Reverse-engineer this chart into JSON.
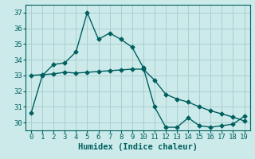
{
  "xlabel": "Humidex (Indice chaleur)",
  "line1_x": [
    0,
    1,
    2,
    3,
    4,
    5,
    6,
    7,
    8,
    9,
    10,
    11,
    12,
    13,
    14,
    15,
    16,
    17,
    18,
    19
  ],
  "line1_y": [
    30.6,
    33.0,
    33.7,
    33.8,
    34.5,
    37.0,
    35.3,
    35.7,
    35.3,
    34.8,
    33.5,
    31.0,
    29.7,
    29.7,
    30.3,
    29.8,
    29.7,
    29.8,
    29.9,
    30.4
  ],
  "line2_x": [
    0,
    1,
    2,
    3,
    4,
    5,
    6,
    7,
    8,
    9,
    10,
    11,
    12,
    13,
    14,
    15,
    16,
    17,
    18,
    19
  ],
  "line2_y": [
    33.0,
    33.05,
    33.1,
    33.2,
    33.15,
    33.2,
    33.25,
    33.3,
    33.35,
    33.4,
    33.4,
    32.7,
    31.8,
    31.5,
    31.3,
    31.0,
    30.75,
    30.55,
    30.35,
    30.1
  ],
  "line_color": "#005f5f",
  "bg_color": "#cceaea",
  "grid_color": "#aacfcf",
  "ylim": [
    29.5,
    37.5
  ],
  "yticks": [
    30,
    31,
    32,
    33,
    34,
    35,
    36,
    37
  ],
  "xlim": [
    -0.5,
    19.5
  ],
  "xticks": [
    0,
    1,
    2,
    3,
    4,
    5,
    6,
    7,
    8,
    9,
    10,
    11,
    12,
    13,
    14,
    15,
    16,
    17,
    18,
    19
  ],
  "marker": "D",
  "markersize": 2.5,
  "linewidth": 1.0,
  "xlabel_fontsize": 7.5,
  "tick_fontsize": 6.5
}
